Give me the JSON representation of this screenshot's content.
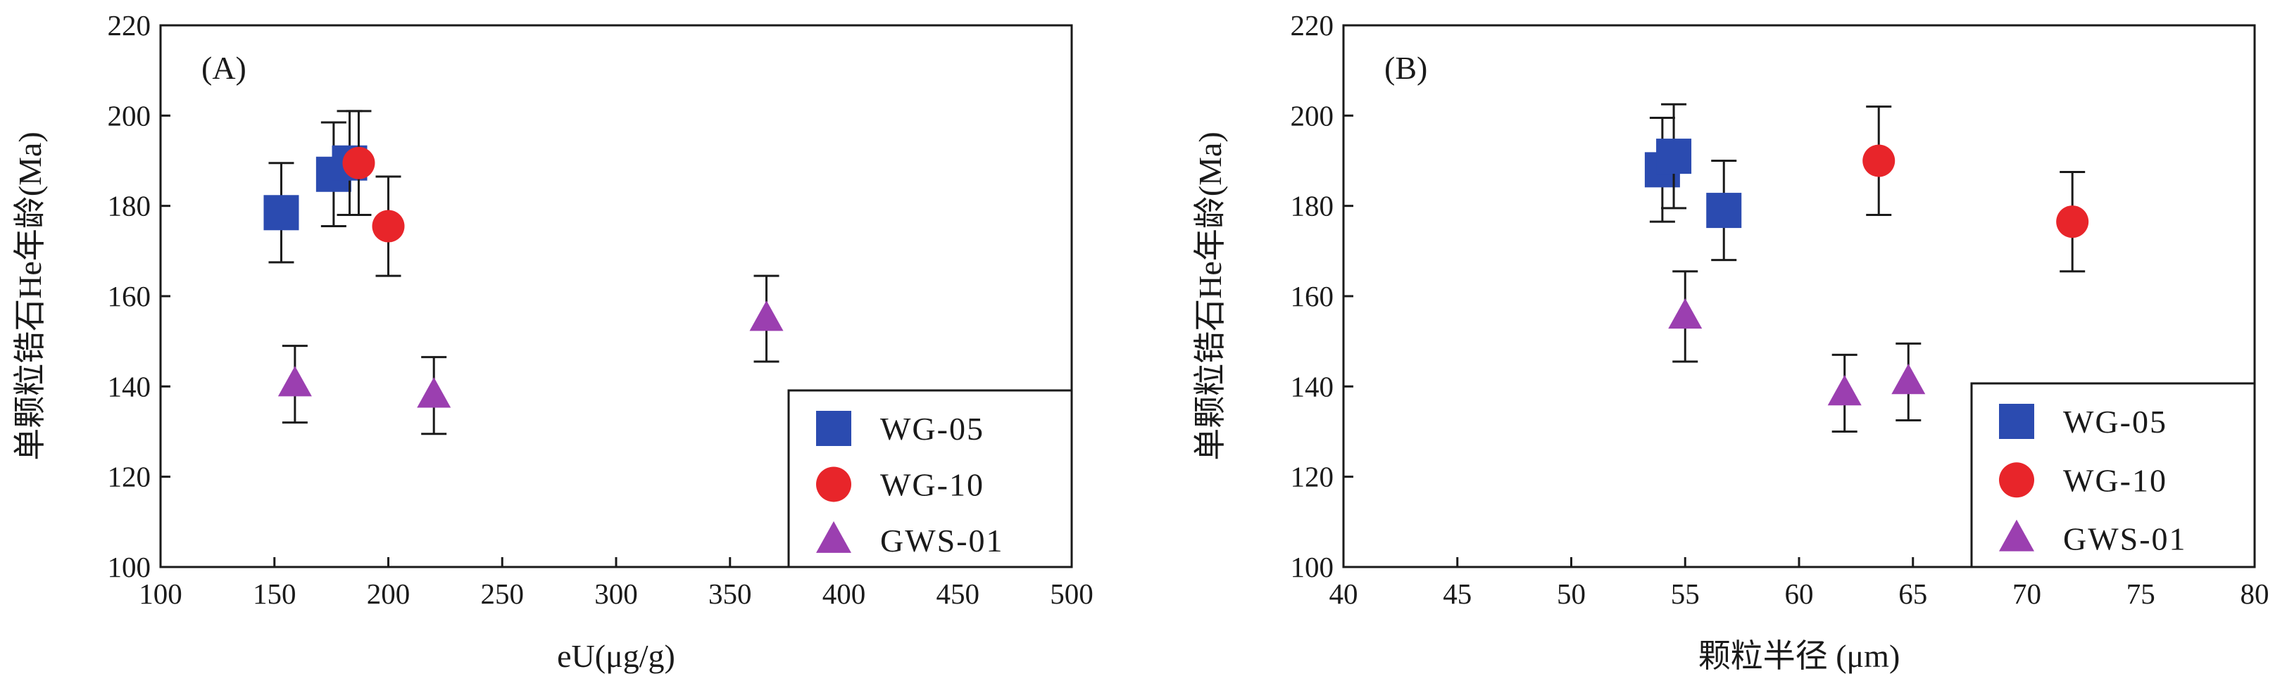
{
  "chart_data": [
    {
      "type": "scatter",
      "panel_label": "(A)",
      "xlabel": "eU(μg/g)",
      "ylabel": "单颗粒锆石He年龄(Ma)",
      "xlim": [
        100,
        500
      ],
      "ylim": [
        100,
        220
      ],
      "xticks": [
        100,
        150,
        200,
        250,
        300,
        350,
        400,
        450,
        500
      ],
      "yticks": [
        100,
        120,
        140,
        160,
        180,
        200,
        220
      ],
      "xtick_labels": [
        "100",
        "150",
        "200",
        "250",
        "300",
        "350",
        "400",
        "450",
        "500"
      ],
      "ytick_labels": [
        "100",
        "120",
        "140",
        "160",
        "180",
        "200",
        "220"
      ],
      "legend_position": "bottom-right",
      "series": [
        {
          "name": "WG-05",
          "marker": "square",
          "color": "#2b4bb0",
          "points": [
            {
              "x": 153,
              "y": 178.5,
              "err": 11
            },
            {
              "x": 176,
              "y": 187,
              "err": 11.5
            },
            {
              "x": 183,
              "y": 189.5,
              "err": 11.5
            }
          ]
        },
        {
          "name": "WG-10",
          "marker": "circle",
          "color": "#e8252a",
          "points": [
            {
              "x": 187,
              "y": 189.5,
              "err": 11.5
            },
            {
              "x": 200,
              "y": 175.5,
              "err": 11
            }
          ]
        },
        {
          "name": "GWS-01",
          "marker": "triangle",
          "color": "#9b3fb0",
          "points": [
            {
              "x": 159,
              "y": 140.5,
              "err": 8.5
            },
            {
              "x": 220,
              "y": 138,
              "err": 8.5
            },
            {
              "x": 366,
              "y": 155,
              "err": 9.5
            }
          ]
        }
      ]
    },
    {
      "type": "scatter",
      "panel_label": "(B)",
      "xlabel": "颗粒半径 (μm)",
      "ylabel": "单颗粒锆石He年龄(Ma)",
      "xlim": [
        40,
        80
      ],
      "ylim": [
        100,
        220
      ],
      "xticks": [
        40,
        45,
        50,
        55,
        60,
        65,
        70,
        75,
        80
      ],
      "yticks": [
        100,
        120,
        140,
        160,
        180,
        200,
        220
      ],
      "xtick_labels": [
        "40",
        "45",
        "50",
        "55",
        "60",
        "65",
        "70",
        "75",
        "80"
      ],
      "ytick_labels": [
        "100",
        "120",
        "140",
        "160",
        "180",
        "200",
        "220"
      ],
      "legend_position": "bottom-right",
      "series": [
        {
          "name": "WG-05",
          "marker": "square",
          "color": "#2b4bb0",
          "points": [
            {
              "x": 54.0,
              "y": 188,
              "err": 11.5
            },
            {
              "x": 54.5,
              "y": 191,
              "err": 11.5
            },
            {
              "x": 56.7,
              "y": 179,
              "err": 11
            }
          ]
        },
        {
          "name": "WG-10",
          "marker": "circle",
          "color": "#e8252a",
          "points": [
            {
              "x": 63.5,
              "y": 190,
              "err": 12
            },
            {
              "x": 72.0,
              "y": 176.5,
              "err": 11
            }
          ]
        },
        {
          "name": "GWS-01",
          "marker": "triangle",
          "color": "#9b3fb0",
          "points": [
            {
              "x": 55.0,
              "y": 155.5,
              "err": 10
            },
            {
              "x": 62.0,
              "y": 138.5,
              "err": 8.5
            },
            {
              "x": 64.8,
              "y": 141,
              "err": 8.5
            }
          ]
        }
      ]
    }
  ]
}
